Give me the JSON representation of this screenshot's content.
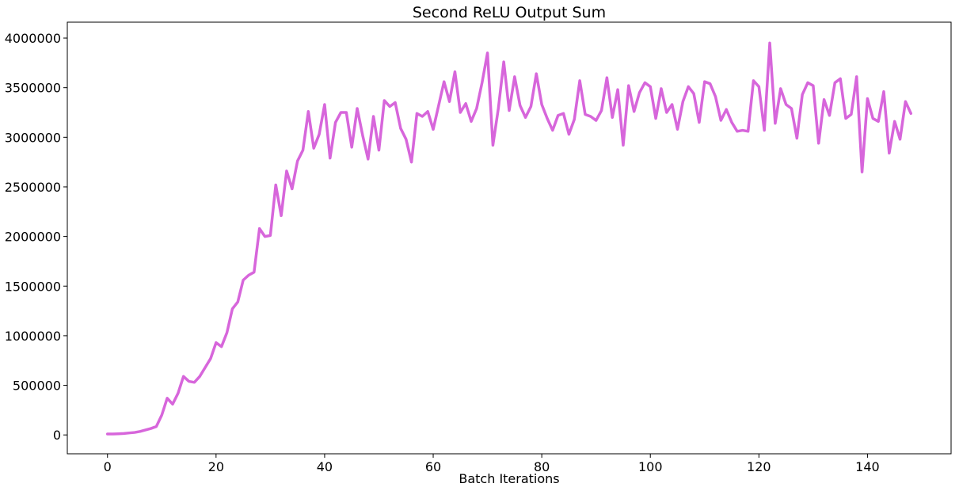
{
  "chart_data": {
    "type": "line",
    "title": "Second ReLU Output Sum",
    "xlabel": "Batch Iterations",
    "ylabel": "",
    "xlim": [
      -7.4,
      155.4
    ],
    "ylim": [
      -190000,
      4160000
    ],
    "x_ticks": [
      0,
      20,
      40,
      60,
      80,
      100,
      120,
      140
    ],
    "y_ticks": [
      0,
      500000,
      1000000,
      1500000,
      2000000,
      2500000,
      3000000,
      3500000,
      4000000
    ],
    "grid": false,
    "legend": "none",
    "series": [
      {
        "color": "#d766db",
        "x": [
          0,
          1,
          2,
          3,
          4,
          5,
          6,
          7,
          8,
          9,
          10,
          11,
          12,
          13,
          14,
          15,
          16,
          17,
          18,
          19,
          20,
          21,
          22,
          23,
          24,
          25,
          26,
          27,
          28,
          29,
          30,
          31,
          32,
          33,
          34,
          35,
          36,
          37,
          38,
          39,
          40,
          41,
          42,
          43,
          44,
          45,
          46,
          47,
          48,
          49,
          50,
          51,
          52,
          53,
          54,
          55,
          56,
          57,
          58,
          59,
          60,
          61,
          62,
          63,
          64,
          65,
          66,
          67,
          68,
          69,
          70,
          71,
          72,
          73,
          74,
          75,
          76,
          77,
          78,
          79,
          80,
          81,
          82,
          83,
          84,
          85,
          86,
          87,
          88,
          89,
          90,
          91,
          92,
          93,
          94,
          95,
          96,
          97,
          98,
          99,
          100,
          101,
          102,
          103,
          104,
          105,
          106,
          107,
          108,
          109,
          110,
          111,
          112,
          113,
          114,
          115,
          116,
          117,
          118,
          119,
          120,
          121,
          122,
          123,
          124,
          125,
          126,
          127,
          128,
          129,
          130,
          131,
          132,
          133,
          134,
          135,
          136,
          137,
          138,
          139,
          140,
          141,
          142,
          143,
          144,
          145,
          146,
          147,
          148
        ],
        "y": [
          10000,
          10000,
          12000,
          15000,
          20000,
          25000,
          35000,
          50000,
          65000,
          85000,
          200000,
          370000,
          310000,
          420000,
          590000,
          540000,
          530000,
          590000,
          680000,
          770000,
          930000,
          890000,
          1030000,
          1270000,
          1340000,
          1560000,
          1610000,
          1640000,
          2080000,
          2000000,
          2010000,
          2520000,
          2210000,
          2660000,
          2480000,
          2760000,
          2870000,
          3260000,
          2890000,
          3030000,
          3330000,
          2790000,
          3150000,
          3250000,
          3250000,
          2900000,
          3290000,
          3020000,
          2780000,
          3210000,
          2870000,
          3370000,
          3310000,
          3350000,
          3090000,
          2980000,
          2750000,
          3240000,
          3210000,
          3260000,
          3080000,
          3320000,
          3560000,
          3360000,
          3660000,
          3250000,
          3340000,
          3160000,
          3290000,
          3550000,
          3850000,
          2920000,
          3290000,
          3760000,
          3270000,
          3610000,
          3320000,
          3200000,
          3310000,
          3640000,
          3330000,
          3190000,
          3070000,
          3220000,
          3240000,
          3030000,
          3180000,
          3570000,
          3230000,
          3210000,
          3170000,
          3270000,
          3600000,
          3200000,
          3480000,
          2920000,
          3520000,
          3260000,
          3450000,
          3550000,
          3510000,
          3190000,
          3490000,
          3250000,
          3330000,
          3080000,
          3360000,
          3510000,
          3440000,
          3150000,
          3560000,
          3540000,
          3410000,
          3170000,
          3280000,
          3150000,
          3060000,
          3070000,
          3060000,
          3570000,
          3510000,
          3070000,
          3950000,
          3140000,
          3490000,
          3330000,
          3290000,
          2990000,
          3430000,
          3550000,
          3520000,
          2940000,
          3380000,
          3220000,
          3550000,
          3590000,
          3190000,
          3230000,
          3610000,
          2650000,
          3390000,
          3190000,
          3160000,
          3460000,
          2840000,
          3160000,
          2980000,
          3360000,
          3240000
        ]
      }
    ]
  }
}
